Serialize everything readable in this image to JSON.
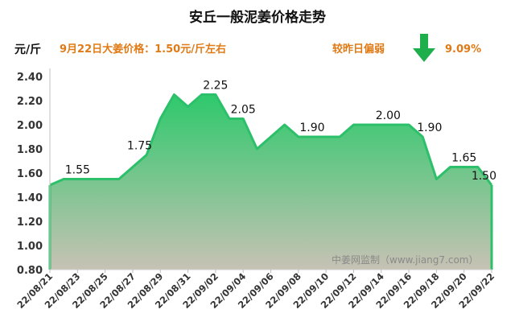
{
  "header": {
    "unit": "元/斤",
    "price_note": "9月22日大姜价格：1.50元/斤左右",
    "change_label": "较昨日偏弱",
    "change_pct": "9.09%",
    "change_direction": "down"
  },
  "watermark": "中姜网监制（www.jiang7.com）",
  "colors": {
    "line": "#2cc06a",
    "fill_top": "#2ec96c",
    "fill_bottom": "#c7c2b4",
    "accent": "#e07a16",
    "arrow": "#1fae4c"
  },
  "chart_data": {
    "type": "area",
    "title": "安丘一般泥姜价格走势",
    "ylabel": "元/斤",
    "xlabel": "",
    "ylim": [
      0.8,
      2.4
    ],
    "yticks": [
      "0.80",
      "1.00",
      "1.20",
      "1.40",
      "1.60",
      "1.80",
      "2.00",
      "2.20",
      "2.40"
    ],
    "xlim": [
      0,
      32
    ],
    "xticks": [
      {
        "i": 0,
        "label": "22/08/21"
      },
      {
        "i": 2,
        "label": "22/08/23"
      },
      {
        "i": 4,
        "label": "22/08/25"
      },
      {
        "i": 6,
        "label": "22/08/27"
      },
      {
        "i": 8,
        "label": "22/08/29"
      },
      {
        "i": 10,
        "label": "22/08/31"
      },
      {
        "i": 12,
        "label": "22/09/02"
      },
      {
        "i": 14,
        "label": "22/09/04"
      },
      {
        "i": 16,
        "label": "22/09/06"
      },
      {
        "i": 18,
        "label": "22/09/08"
      },
      {
        "i": 20,
        "label": "22/09/10"
      },
      {
        "i": 22,
        "label": "22/09/12"
      },
      {
        "i": 24,
        "label": "22/09/14"
      },
      {
        "i": 26,
        "label": "22/09/16"
      },
      {
        "i": 28,
        "label": "22/09/18"
      },
      {
        "i": 30,
        "label": "22/09/20"
      },
      {
        "i": 32,
        "label": "22/09/22"
      }
    ],
    "series": [
      {
        "name": "安丘一般泥姜",
        "points": [
          [
            0,
            1.5
          ],
          [
            1,
            1.55
          ],
          [
            2,
            1.55
          ],
          [
            3,
            1.55
          ],
          [
            4,
            1.55
          ],
          [
            5,
            1.55
          ],
          [
            6,
            1.65
          ],
          [
            7,
            1.75
          ],
          [
            8,
            2.05
          ],
          [
            9,
            2.25
          ],
          [
            10,
            2.15
          ],
          [
            11,
            2.25
          ],
          [
            12,
            2.25
          ],
          [
            13,
            2.05
          ],
          [
            14,
            2.05
          ],
          [
            15,
            1.8
          ],
          [
            16,
            1.9
          ],
          [
            17,
            2.0
          ],
          [
            18,
            1.9
          ],
          [
            19,
            1.9
          ],
          [
            20,
            1.9
          ],
          [
            21,
            1.9
          ],
          [
            22,
            2.0
          ],
          [
            23,
            2.0
          ],
          [
            24,
            2.0
          ],
          [
            25,
            2.0
          ],
          [
            26,
            2.0
          ],
          [
            27,
            1.9
          ],
          [
            28,
            1.55
          ],
          [
            29,
            1.65
          ],
          [
            30,
            1.65
          ],
          [
            31,
            1.65
          ],
          [
            32,
            1.5
          ]
        ]
      }
    ],
    "annotations": [
      {
        "i": 2,
        "text": "1.55"
      },
      {
        "i": 6.5,
        "text": "1.75"
      },
      {
        "i": 12,
        "text": "2.25"
      },
      {
        "i": 14,
        "text": "2.05"
      },
      {
        "i": 19,
        "text": "1.90"
      },
      {
        "i": 24.5,
        "text": "2.00"
      },
      {
        "i": 27.5,
        "text": "1.90"
      },
      {
        "i": 30,
        "text": "1.65"
      },
      {
        "i": 32,
        "text": "1.50"
      }
    ]
  }
}
